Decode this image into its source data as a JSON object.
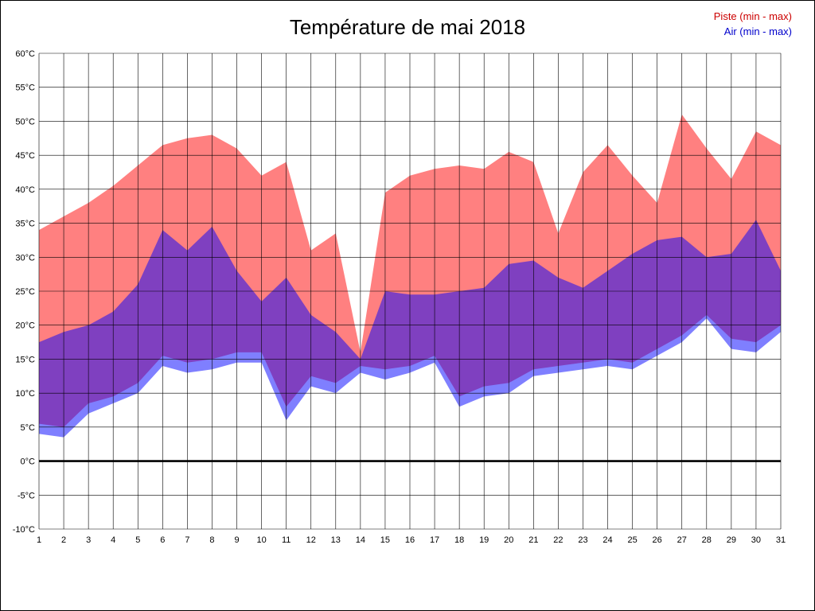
{
  "chart_data": {
    "type": "area",
    "title": "Température de mai 2018",
    "y_unit": "°C",
    "ylim": [
      -10,
      60
    ],
    "ytick_step": 5,
    "grid": true,
    "legend_position": "top-right",
    "x": [
      1,
      2,
      3,
      4,
      5,
      6,
      7,
      8,
      9,
      10,
      11,
      12,
      13,
      14,
      15,
      16,
      17,
      18,
      19,
      20,
      21,
      22,
      23,
      24,
      25,
      26,
      27,
      28,
      29,
      30,
      31
    ],
    "series": [
      {
        "name": "Piste (min - max)",
        "legend_color": "#CC0000",
        "color": "#FF8080",
        "min": [
          5.5,
          5,
          8.5,
          9.5,
          11.5,
          15.5,
          14.5,
          15,
          16,
          16,
          8,
          12.5,
          11.5,
          14,
          13.5,
          14,
          15.5,
          9.5,
          11,
          11.5,
          13.5,
          14,
          14.5,
          15,
          14.5,
          16.5,
          18.5,
          21.5,
          18,
          17.5,
          20
        ],
        "max": [
          34,
          36,
          38,
          40.5,
          43.5,
          46.5,
          47.5,
          48,
          46,
          42,
          44,
          31,
          33.5,
          16,
          39.5,
          42,
          43,
          43.5,
          43,
          45.5,
          44,
          33.5,
          42.5,
          46.5,
          42,
          38,
          51,
          46,
          41.5,
          48.5,
          46.5
        ]
      },
      {
        "name": "Air (min - max)",
        "legend_color": "#0000CC",
        "color": "rgba(0,0,255,0.5)",
        "min": [
          4,
          3.5,
          7,
          8.5,
          10,
          14,
          13,
          13.5,
          14.5,
          14.5,
          6,
          11,
          10,
          13,
          12,
          13,
          14.5,
          8,
          9.5,
          10,
          12.5,
          13,
          13.5,
          14,
          13.5,
          15.5,
          17.5,
          21,
          16.5,
          16,
          19
        ],
        "max": [
          17.5,
          19,
          20,
          22,
          26,
          34,
          31,
          34.5,
          28,
          23.5,
          27,
          21.5,
          19,
          15,
          25,
          24.5,
          24.5,
          25,
          25.5,
          29,
          29.5,
          27,
          25.5,
          28,
          30.5,
          32.5,
          33,
          30,
          30.5,
          35.5,
          28
        ]
      }
    ],
    "axis_color": "#000000",
    "zero_line_color": "#000000"
  }
}
